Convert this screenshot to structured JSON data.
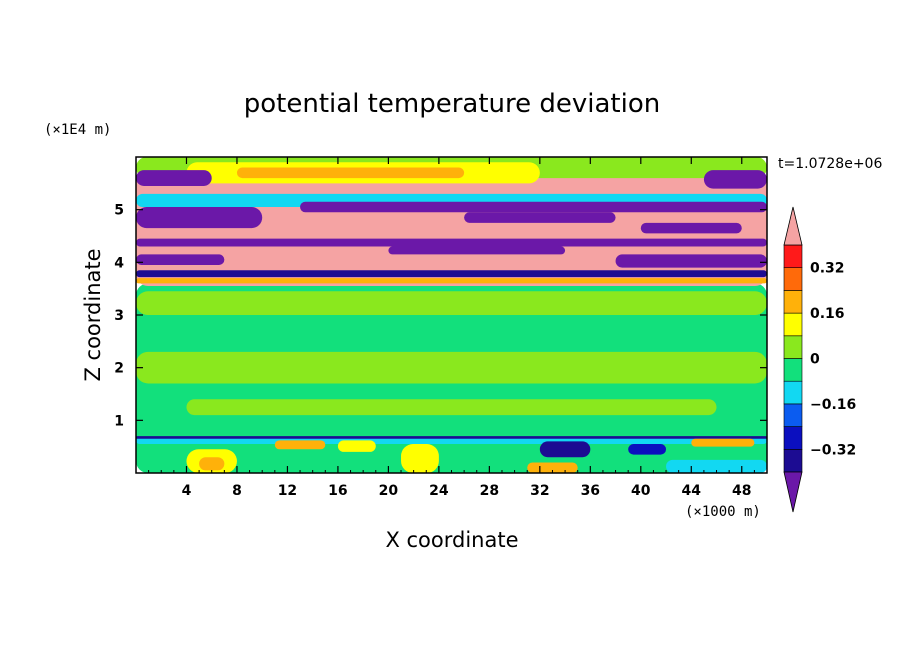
{
  "chart_data": {
    "type": "heatmap",
    "title": "potential temperature deviation",
    "time_label": "t=1.0728e+06",
    "xlabel": "X coordinate",
    "ylabel": "Z coordinate",
    "x_unit": "(×1000 m)",
    "y_unit": "(×1E4 m)",
    "xlim": [
      0,
      50
    ],
    "ylim": [
      0,
      6
    ],
    "x_ticks": [
      4,
      8,
      12,
      16,
      20,
      24,
      28,
      32,
      36,
      40,
      44,
      48
    ],
    "x_tick_labels": [
      "4",
      "8",
      "12",
      "16",
      "20",
      "24",
      "28",
      "32",
      "36",
      "40",
      "44",
      "48"
    ],
    "y_ticks": [
      1,
      2,
      3,
      4,
      5
    ],
    "y_tick_labels": [
      "1",
      "2",
      "3",
      "4",
      "5"
    ],
    "colorbar": {
      "levels": [
        -0.4,
        -0.32,
        -0.24,
        -0.16,
        -0.08,
        0,
        0.08,
        0.16,
        0.24,
        0.32,
        0.4
      ],
      "tick_values": [
        -0.32,
        -0.16,
        0,
        0.16,
        0.32
      ],
      "tick_labels": [
        "−0.32",
        "−0.16",
        "0",
        "0.16",
        "0.32"
      ],
      "colors": [
        "#1c0c92",
        "#0b0fbf",
        "#0b5cf0",
        "#12d8f2",
        "#12e07c",
        "#8ae81e",
        "#ffff00",
        "#ffb10a",
        "#ff6a0a",
        "#ff1a1a"
      ],
      "under_color": "#6b18a8",
      "over_color": "#f5a3a3"
    },
    "regions": [
      {
        "x0": 0,
        "x1": 50,
        "z0": 0,
        "z1": 3.6,
        "color": "#12e07c"
      },
      {
        "x0": 0,
        "x1": 50,
        "z0": 1.7,
        "z1": 2.3,
        "color": "#8ae81e"
      },
      {
        "x0": 0,
        "x1": 50,
        "z0": 3.0,
        "z1": 3.45,
        "color": "#8ae81e"
      },
      {
        "x0": 4,
        "x1": 46,
        "z0": 1.1,
        "z1": 1.4,
        "color": "#8ae81e"
      },
      {
        "x0": 0,
        "x1": 50,
        "z0": 3.55,
        "z1": 5.7,
        "color": "#f5a3a3"
      },
      {
        "x0": 0,
        "x1": 50,
        "z0": 5.6,
        "z1": 6.0,
        "color": "#8ae81e"
      },
      {
        "x0": 4,
        "x1": 32,
        "z0": 5.5,
        "z1": 5.9,
        "color": "#ffff00"
      },
      {
        "x0": 8,
        "x1": 26,
        "z0": 5.6,
        "z1": 5.8,
        "color": "#ffb10a"
      },
      {
        "x0": 0,
        "x1": 6,
        "z0": 5.45,
        "z1": 5.75,
        "color": "#6b18a8"
      },
      {
        "x0": 45,
        "x1": 50,
        "z0": 5.4,
        "z1": 5.75,
        "color": "#6b18a8"
      },
      {
        "x0": 0,
        "x1": 50,
        "z0": 5.05,
        "z1": 5.3,
        "color": "#12d8f2"
      },
      {
        "x0": 0,
        "x1": 10,
        "z0": 4.65,
        "z1": 5.05,
        "color": "#6b18a8"
      },
      {
        "x0": 13,
        "x1": 50,
        "z0": 4.95,
        "z1": 5.15,
        "color": "#6b18a8"
      },
      {
        "x0": 26,
        "x1": 38,
        "z0": 4.75,
        "z1": 4.95,
        "color": "#6b18a8"
      },
      {
        "x0": 40,
        "x1": 48,
        "z0": 4.55,
        "z1": 4.75,
        "color": "#6b18a8"
      },
      {
        "x0": 0,
        "x1": 50,
        "z0": 4.3,
        "z1": 4.45,
        "color": "#6b18a8"
      },
      {
        "x0": 20,
        "x1": 34,
        "z0": 4.15,
        "z1": 4.3,
        "color": "#6b18a8"
      },
      {
        "x0": 0,
        "x1": 7,
        "z0": 3.95,
        "z1": 4.15,
        "color": "#6b18a8"
      },
      {
        "x0": 38,
        "x1": 50,
        "z0": 3.9,
        "z1": 4.15,
        "color": "#6b18a8"
      },
      {
        "x0": 0,
        "x1": 50,
        "z0": 3.72,
        "z1": 3.85,
        "color": "#1c0c92"
      },
      {
        "x0": 0,
        "x1": 50,
        "z0": 3.6,
        "z1": 3.7,
        "color": "#ffb10a"
      },
      {
        "x0": 0,
        "x1": 50,
        "z0": 0.55,
        "z1": 0.68,
        "color": "#12d8f2"
      },
      {
        "x0": 0,
        "x1": 50,
        "z0": 0.65,
        "z1": 0.7,
        "color": "#1c0c92"
      },
      {
        "x0": 4,
        "x1": 8,
        "z0": 0.0,
        "z1": 0.45,
        "color": "#ffff00"
      },
      {
        "x0": 5,
        "x1": 7,
        "z0": 0.05,
        "z1": 0.3,
        "color": "#ffb10a"
      },
      {
        "x0": 11,
        "x1": 15,
        "z0": 0.45,
        "z1": 0.62,
        "color": "#ffb10a"
      },
      {
        "x0": 21,
        "x1": 24,
        "z0": 0.0,
        "z1": 0.55,
        "color": "#ffff00"
      },
      {
        "x0": 16,
        "x1": 19,
        "z0": 0.4,
        "z1": 0.62,
        "color": "#ffff00"
      },
      {
        "x0": 31,
        "x1": 35,
        "z0": 0.0,
        "z1": 0.2,
        "color": "#ffb10a"
      },
      {
        "x0": 32,
        "x1": 36,
        "z0": 0.3,
        "z1": 0.6,
        "color": "#1c0c92"
      },
      {
        "x0": 42,
        "x1": 50,
        "z0": 0.0,
        "z1": 0.25,
        "color": "#12d8f2"
      },
      {
        "x0": 39,
        "x1": 42,
        "z0": 0.35,
        "z1": 0.55,
        "color": "#0b0fbf"
      },
      {
        "x0": 44,
        "x1": 49,
        "z0": 0.5,
        "z1": 0.65,
        "color": "#ffb10a"
      }
    ]
  }
}
